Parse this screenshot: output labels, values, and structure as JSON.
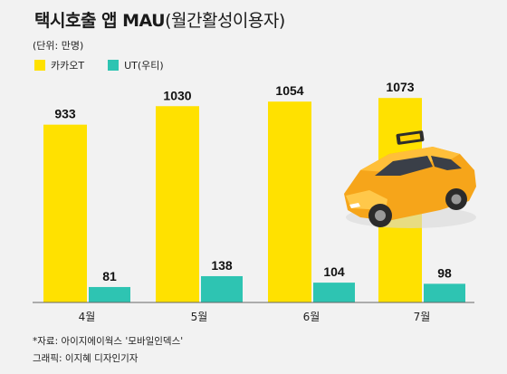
{
  "title_bold": "택시호출 앱 MAU",
  "title_light": "(월간활성이용자)",
  "unit": "(단위: 만명)",
  "source": "*자료: 아이지에이웍스 '모바일인덱스'",
  "credit": "그래픽: 이지혜 디자인기자",
  "colors": {
    "kakao": "#ffe100",
    "ut": "#2ec4b2",
    "background": "#f2f2f2"
  },
  "chart_data": {
    "type": "bar",
    "categories": [
      "4월",
      "5월",
      "6월",
      "7월"
    ],
    "series": [
      {
        "name": "카카오T",
        "values": [
          933,
          1030,
          1054,
          1073
        ]
      },
      {
        "name": "UT(우티)",
        "values": [
          81,
          138,
          104,
          98
        ]
      }
    ],
    "ylim": [
      0,
      1150
    ],
    "legend_position": "top-left",
    "grid": false
  }
}
